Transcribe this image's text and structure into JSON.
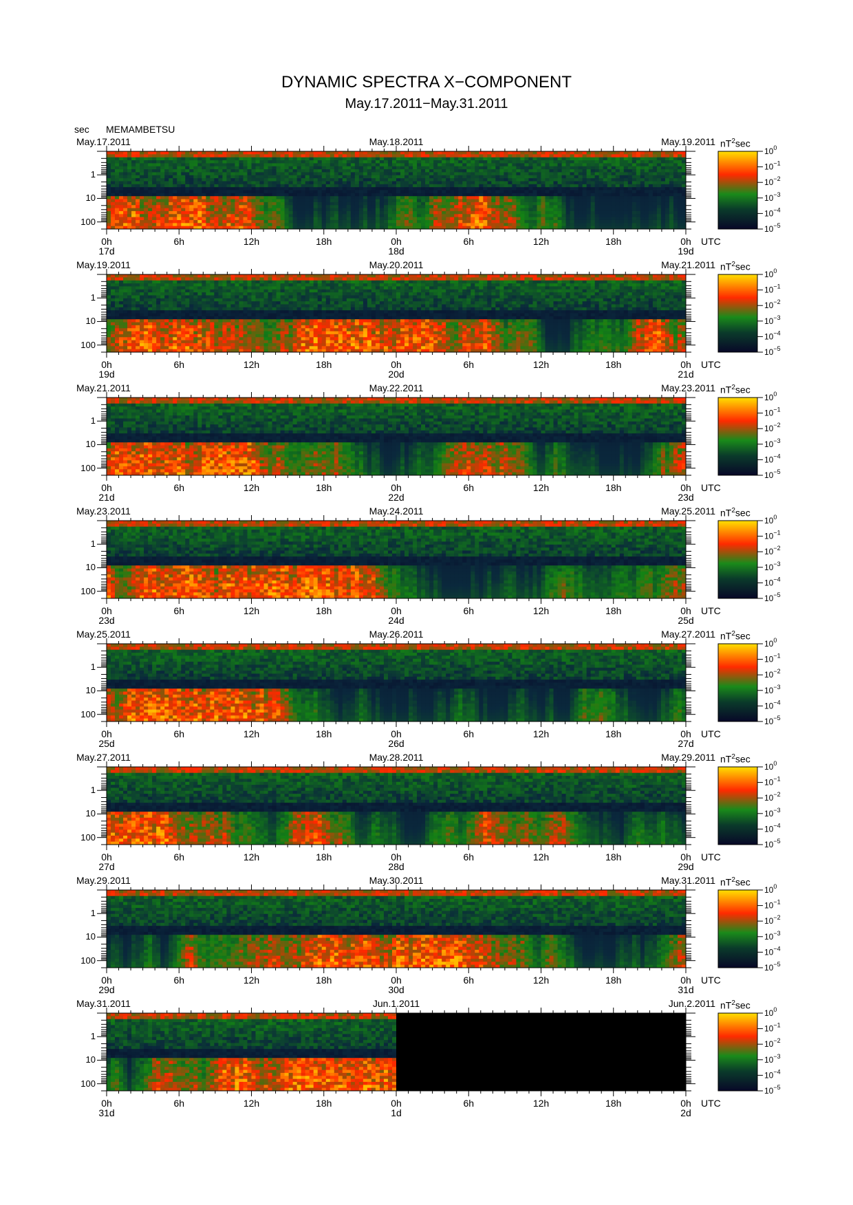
{
  "title": "DYNAMIC SPECTRA X−COMPONENT",
  "subtitle": "May.17.2011−May.31.2011",
  "station": "MEMAMBETSU",
  "y_unit": "sec",
  "x_unit": "UTC",
  "colorbar_unit": "nT",
  "colorbar_unit_exp": "2",
  "colorbar_unit_suffix": "sec",
  "colors": {
    "low": "#0a0a3a",
    "mid": "#1a8a1a",
    "high": "#ff2a00",
    "max": "#ffe000"
  },
  "chart_data": {
    "type": "heatmap",
    "y_axis": {
      "scale": "log",
      "ticks": [
        "1",
        "10",
        "100"
      ]
    },
    "x_ticks": [
      "0h",
      "6h",
      "12h",
      "18h",
      "0h",
      "6h",
      "12h",
      "18h",
      "0h"
    ],
    "colorbar": {
      "scale": "log",
      "range": [
        -5,
        0
      ],
      "ticks": [
        {
          "base": "10",
          "exp": "0"
        },
        {
          "base": "10",
          "exp": "−1"
        },
        {
          "base": "10",
          "exp": "−2"
        },
        {
          "base": "10",
          "exp": "−3"
        },
        {
          "base": "10",
          "exp": "−4"
        },
        {
          "base": "10",
          "exp": "−5"
        }
      ]
    },
    "panels": [
      {
        "date_left": "May.17.2011",
        "date_mid": "May.18.2011",
        "date_right": "May.19.2011",
        "day_left": "17d",
        "day_mid": "18d",
        "day_right": "19d",
        "no_data_after_day": null
      },
      {
        "date_left": "May.19.2011",
        "date_mid": "May.20.2011",
        "date_right": "May.21.2011",
        "day_left": "19d",
        "day_mid": "20d",
        "day_right": "21d",
        "no_data_after_day": null
      },
      {
        "date_left": "May.21.2011",
        "date_mid": "May.22.2011",
        "date_right": "May.23.2011",
        "day_left": "21d",
        "day_mid": "22d",
        "day_right": "23d",
        "no_data_after_day": null
      },
      {
        "date_left": "May.23.2011",
        "date_mid": "May.24.2011",
        "date_right": "May.25.2011",
        "day_left": "23d",
        "day_mid": "24d",
        "day_right": "25d",
        "no_data_after_day": null
      },
      {
        "date_left": "May.25.2011",
        "date_mid": "May.26.2011",
        "date_right": "May.27.2011",
        "day_left": "25d",
        "day_mid": "26d",
        "day_right": "27d",
        "no_data_after_day": null
      },
      {
        "date_left": "May.27.2011",
        "date_mid": "May.28.2011",
        "date_right": "May.29.2011",
        "day_left": "27d",
        "day_mid": "28d",
        "day_right": "29d",
        "no_data_after_day": null
      },
      {
        "date_left": "May.29.2011",
        "date_mid": "May.30.2011",
        "date_right": "May.31.2011",
        "day_left": "29d",
        "day_mid": "30d",
        "day_right": "31d",
        "no_data_after_day": null
      },
      {
        "date_left": "May.31.2011",
        "date_mid": "Jun.1.2011",
        "date_right": "Jun.2.2011",
        "day_left": "31d",
        "day_mid": "1d",
        "day_right": "2d",
        "no_data_after_day": "Jun.1.2011"
      }
    ]
  }
}
